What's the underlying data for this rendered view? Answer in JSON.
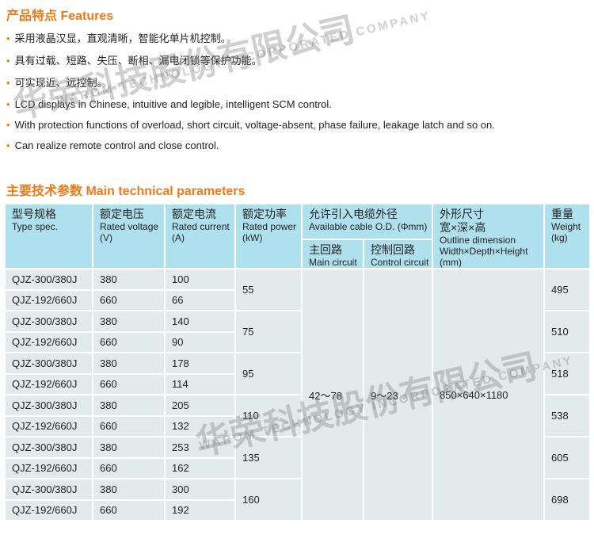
{
  "features": {
    "title": "产品特点 Features",
    "items": [
      "采用液晶汉显，直观清晰，智能化单片机控制。",
      "具有过载、短路、失压、断相、漏电闭锁等保护功能。",
      "可实现近、远控制。",
      "LCD displays in Chinese, intuitive and legible, intelligent SCM control.",
      "With protection functions of overload, short circuit, voltage-absent, phase failure, leakage latch and so on.",
      "Can realize remote control and close control."
    ]
  },
  "params": {
    "title": "主要技术参数   Main technical parameters",
    "headers": {
      "type": {
        "cn": "型号规格",
        "en": "Type spec."
      },
      "voltage": {
        "cn": "额定电压",
        "en": "Rated voltage (V)"
      },
      "current": {
        "cn": "额定电流",
        "en": "Rated current (A)"
      },
      "power": {
        "cn": "额定功率",
        "en": "Rated power (kW)"
      },
      "cable": {
        "cn": "允许引入电缆外径",
        "en": "Available cable O.D. (Φmm)"
      },
      "main": {
        "cn": "主回路",
        "en": "Main circuit"
      },
      "control": {
        "cn": "控制回路",
        "en": "Control circuit"
      },
      "dimension": {
        "cn": "外形尺寸",
        "cn2": "宽×深×高",
        "en": "Outline dimension",
        "en2": "Width×Depth×Height",
        "en3": "(mm)"
      },
      "weight": {
        "cn": "重量",
        "en": "Weight (kg)"
      }
    },
    "rows": [
      {
        "type": "QJZ-300/380J",
        "voltage": "380",
        "current": "100"
      },
      {
        "type": "QJZ-192/660J",
        "voltage": "660",
        "current": "66"
      },
      {
        "type": "QJZ-300/380J",
        "voltage": "380",
        "current": "140"
      },
      {
        "type": "QJZ-192/660J",
        "voltage": "660",
        "current": "90"
      },
      {
        "type": "QJZ-300/380J",
        "voltage": "380",
        "current": "178"
      },
      {
        "type": "QJZ-192/660J",
        "voltage": "660",
        "current": "114"
      },
      {
        "type": "QJZ-300/380J",
        "voltage": "380",
        "current": "205"
      },
      {
        "type": "QJZ-192/660J",
        "voltage": "660",
        "current": "132"
      },
      {
        "type": "QJZ-300/380J",
        "voltage": "380",
        "current": "253"
      },
      {
        "type": "QJZ-192/660J",
        "voltage": "660",
        "current": "162"
      },
      {
        "type": "QJZ-300/380J",
        "voltage": "380",
        "current": "300"
      },
      {
        "type": "QJZ-192/660J",
        "voltage": "660",
        "current": "192"
      }
    ],
    "powers": [
      "55",
      "75",
      "95",
      "110",
      "135",
      "160"
    ],
    "weights": [
      "495",
      "510",
      "518",
      "538",
      "605",
      "698"
    ],
    "main_circuit": "42～78",
    "control_circuit": "9～23",
    "dimension": "850×640×1180"
  },
  "watermark": {
    "cn": "华荣科技股份有限公司",
    "en": "WAROM TECHNOLOGY INCORPORATED COMPANY"
  },
  "colors": {
    "accent": "#f07a1a",
    "header_bg": "#aee0ee",
    "cell_bg": "#e2eaea"
  }
}
